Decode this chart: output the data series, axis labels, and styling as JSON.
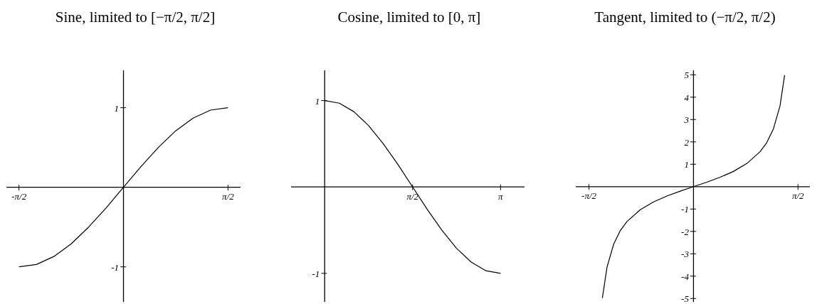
{
  "chart_data": [
    {
      "type": "line",
      "title": "Sine, limited to [−π/2, π/2]",
      "marker": "none",
      "x": [
        -1.571,
        -1.309,
        -1.047,
        -0.785,
        -0.524,
        -0.262,
        0,
        0.262,
        0.524,
        0.785,
        1.047,
        1.309,
        1.571
      ],
      "series": [
        {
          "color": "#000000",
          "values": [
            -1,
            -0.97,
            -0.87,
            -0.71,
            -0.5,
            -0.26,
            0,
            0.26,
            0.5,
            0.71,
            0.87,
            0.97,
            1
          ]
        }
      ],
      "xlim": [
        -1.76,
        1.76
      ],
      "ylim": [
        -1.44,
        1.47
      ],
      "xticks": [
        {
          "value": -1.571,
          "label": "-π/2"
        },
        {
          "value": 1.571,
          "label": "π/2"
        }
      ],
      "yticks": [
        -1,
        1
      ]
    },
    {
      "type": "line",
      "title": "Cosine, limited to [0, π]",
      "marker": "none",
      "x": [
        0,
        0.262,
        0.524,
        0.785,
        1.047,
        1.309,
        1.571,
        1.833,
        2.094,
        2.356,
        2.618,
        2.88,
        3.142
      ],
      "series": [
        {
          "color": "#000000",
          "values": [
            1,
            0.97,
            0.87,
            0.71,
            0.5,
            0.26,
            0,
            -0.26,
            -0.5,
            -0.71,
            -0.87,
            -0.97,
            -1
          ]
        }
      ],
      "xlim": [
        -0.6,
        3.57
      ],
      "ylim": [
        -1.33,
        1.35
      ],
      "xticks": [
        {
          "value": 1.571,
          "label": "π/2"
        },
        {
          "value": 3.142,
          "label": "π"
        }
      ],
      "yticks": [
        -1,
        1
      ]
    },
    {
      "type": "line",
      "title": "Tangent, limited to (−π/2, π/2)",
      "marker": "none",
      "x": [
        -1.37,
        -1.3,
        -1.2,
        -1.1,
        -1,
        -0.8,
        -0.6,
        -0.4,
        -0.2,
        0,
        0.2,
        0.4,
        0.6,
        0.8,
        1,
        1.1,
        1.2,
        1.3,
        1.37
      ],
      "series": [
        {
          "color": "#000000",
          "values": [
            -4.98,
            -3.6,
            -2.57,
            -1.96,
            -1.56,
            -1.03,
            -0.68,
            -0.42,
            -0.2,
            0,
            0.2,
            0.42,
            0.68,
            1.03,
            1.56,
            1.96,
            2.57,
            3.6,
            4.98
          ]
        }
      ],
      "xlim": [
        -1.77,
        1.75
      ],
      "ylim": [
        -5.15,
        5.2
      ],
      "xticks": [
        {
          "value": -1.571,
          "label": "-π/2"
        },
        {
          "value": 1.571,
          "label": "π/2"
        }
      ],
      "yticks": [
        -5,
        -4,
        -3,
        -2,
        -1,
        1,
        2,
        3,
        4,
        5
      ]
    }
  ]
}
